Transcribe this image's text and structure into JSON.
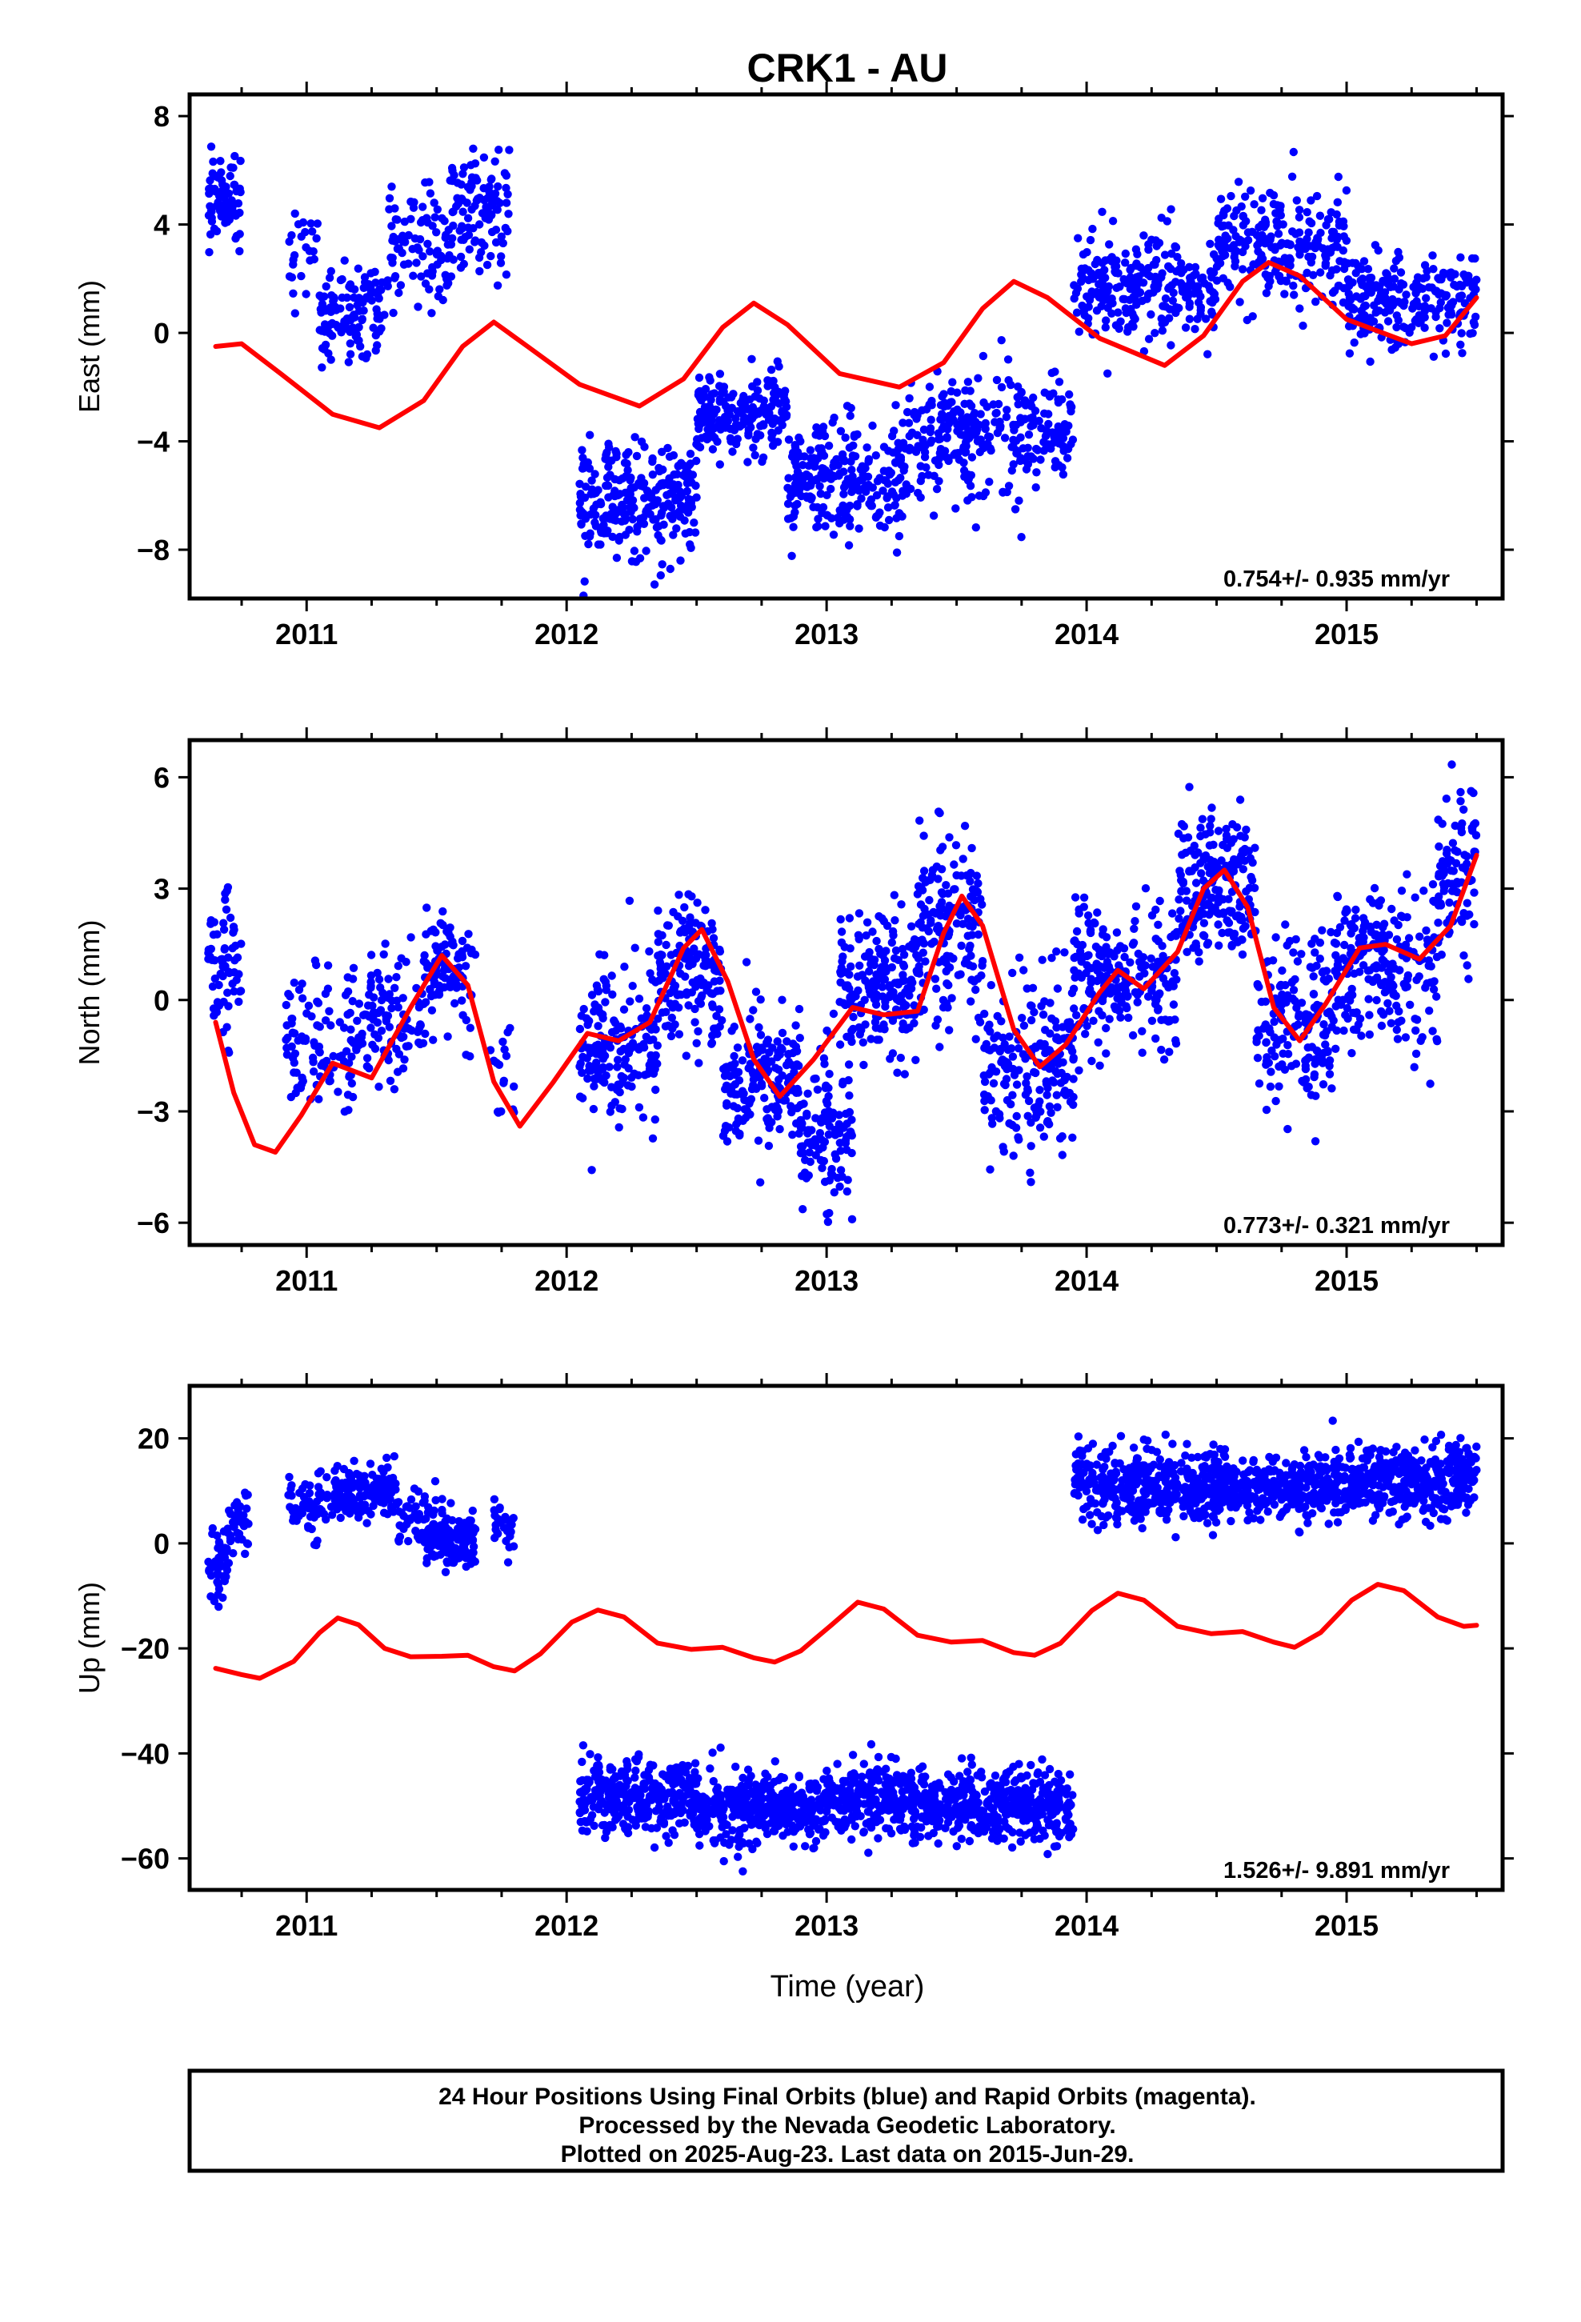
{
  "chart_data": {
    "title": "CRK1 - AU",
    "type": "scatter",
    "x_range": [
      2010.55,
      2015.6
    ],
    "xticks": [
      2011,
      2012,
      2013,
      2014,
      2015
    ],
    "xtick_labels": [
      "2011",
      "2012",
      "2013",
      "2014",
      "2015"
    ],
    "xlabel": "Time (year)",
    "series_colors": {
      "final_orbits": "#0000ff",
      "rapid_orbits": "#ff00ff",
      "model": "#ff0000"
    },
    "panels": [
      {
        "id": "east",
        "ylabel": "East (mm)",
        "ylim": [
          -9.8,
          8.8
        ],
        "yticks": [
          -8,
          -4,
          0,
          4,
          8
        ],
        "ytick_labels": [
          "−8",
          "−4",
          "0",
          "4",
          "8"
        ],
        "rate_text": "0.754+/- 0.935 mm/yr",
        "clusters": [
          [
            2010.62,
            2010.75,
            5.0,
            1.0,
            70
          ],
          [
            2010.93,
            2011.05,
            3.0,
            1.2,
            25
          ],
          [
            2011.05,
            2011.3,
            0.5,
            1.3,
            120
          ],
          [
            2011.3,
            2011.55,
            3.0,
            1.5,
            90
          ],
          [
            2011.55,
            2011.78,
            4.5,
            1.4,
            110
          ],
          [
            2012.05,
            2012.5,
            -6.2,
            1.4,
            260
          ],
          [
            2012.5,
            2012.85,
            -3.0,
            1.0,
            190
          ],
          [
            2012.85,
            2013.3,
            -5.5,
            1.5,
            250
          ],
          [
            2013.3,
            2013.95,
            -3.8,
            1.5,
            300
          ],
          [
            2013.95,
            2014.5,
            1.8,
            1.3,
            260
          ],
          [
            2014.5,
            2015.0,
            3.2,
            1.3,
            240
          ],
          [
            2015.0,
            2015.5,
            1.2,
            1.2,
            230
          ]
        ],
        "model": [
          [
            2010.65,
            -0.5
          ],
          [
            2010.75,
            -0.4
          ],
          [
            2010.9,
            -1.5
          ],
          [
            2011.1,
            -3.0
          ],
          [
            2011.28,
            -3.5
          ],
          [
            2011.45,
            -2.5
          ],
          [
            2011.6,
            -0.5
          ],
          [
            2011.72,
            0.4
          ],
          [
            2011.85,
            -0.5
          ],
          [
            2012.05,
            -1.9
          ],
          [
            2012.28,
            -2.7
          ],
          [
            2012.45,
            -1.7
          ],
          [
            2012.6,
            0.2
          ],
          [
            2012.72,
            1.1
          ],
          [
            2012.85,
            0.3
          ],
          [
            2013.05,
            -1.5
          ],
          [
            2013.28,
            -2.0
          ],
          [
            2013.45,
            -1.1
          ],
          [
            2013.6,
            0.9
          ],
          [
            2013.72,
            1.9
          ],
          [
            2013.85,
            1.3
          ],
          [
            2014.05,
            -0.2
          ],
          [
            2014.3,
            -1.2
          ],
          [
            2014.45,
            -0.1
          ],
          [
            2014.6,
            1.9
          ],
          [
            2014.7,
            2.6
          ],
          [
            2014.82,
            2.1
          ],
          [
            2015.0,
            0.5
          ],
          [
            2015.25,
            -0.4
          ],
          [
            2015.38,
            -0.1
          ],
          [
            2015.5,
            1.3
          ]
        ]
      },
      {
        "id": "north",
        "ylabel": "North (mm)",
        "ylim": [
          -6.6,
          7.0
        ],
        "yticks": [
          -6,
          -3,
          0,
          3,
          6
        ],
        "ytick_labels": [
          "−6",
          "−3",
          "0",
          "3",
          "6"
        ],
        "rate_text": "0.773+/- 0.321 mm/yr",
        "clusters": [
          [
            2010.62,
            2010.75,
            0.8,
            1.2,
            65
          ],
          [
            2010.92,
            2011.2,
            -1.2,
            1.3,
            110
          ],
          [
            2011.2,
            2011.45,
            -0.5,
            1.3,
            100
          ],
          [
            2011.45,
            2011.65,
            0.8,
            1.0,
            100
          ],
          [
            2011.7,
            2011.8,
            -2.0,
            1.0,
            18
          ],
          [
            2012.05,
            2012.35,
            -1.3,
            1.4,
            170
          ],
          [
            2012.35,
            2012.6,
            0.8,
            1.3,
            160
          ],
          [
            2012.6,
            2012.9,
            -2.2,
            1.3,
            180
          ],
          [
            2012.9,
            2013.1,
            -3.5,
            1.4,
            120
          ],
          [
            2013.05,
            2013.35,
            0.3,
            1.3,
            190
          ],
          [
            2013.35,
            2013.6,
            2.0,
            1.6,
            170
          ],
          [
            2013.6,
            2013.95,
            -1.8,
            1.5,
            200
          ],
          [
            2013.95,
            2014.35,
            0.6,
            1.3,
            220
          ],
          [
            2014.35,
            2014.65,
            3.0,
            1.3,
            200
          ],
          [
            2014.65,
            2014.95,
            -0.5,
            1.5,
            170
          ],
          [
            2014.95,
            2015.35,
            0.8,
            1.4,
            220
          ],
          [
            2015.35,
            2015.5,
            3.2,
            1.5,
            90
          ]
        ],
        "model": [
          [
            2010.65,
            -0.6
          ],
          [
            2010.72,
            -2.5
          ],
          [
            2010.8,
            -3.9
          ],
          [
            2010.88,
            -4.1
          ],
          [
            2010.98,
            -3.1
          ],
          [
            2011.1,
            -1.7
          ],
          [
            2011.25,
            -2.1
          ],
          [
            2011.4,
            -0.2
          ],
          [
            2011.52,
            1.2
          ],
          [
            2011.62,
            0.4
          ],
          [
            2011.72,
            -2.2
          ],
          [
            2011.82,
            -3.4
          ],
          [
            2011.95,
            -2.2
          ],
          [
            2012.08,
            -0.9
          ],
          [
            2012.2,
            -1.1
          ],
          [
            2012.32,
            -0.6
          ],
          [
            2012.45,
            1.4
          ],
          [
            2012.52,
            1.9
          ],
          [
            2012.62,
            0.5
          ],
          [
            2012.72,
            -1.6
          ],
          [
            2012.82,
            -2.6
          ],
          [
            2012.95,
            -1.6
          ],
          [
            2013.1,
            -0.2
          ],
          [
            2013.22,
            -0.4
          ],
          [
            2013.35,
            -0.3
          ],
          [
            2013.45,
            1.8
          ],
          [
            2013.52,
            2.8
          ],
          [
            2013.6,
            2.0
          ],
          [
            2013.72,
            -0.8
          ],
          [
            2013.82,
            -1.8
          ],
          [
            2013.92,
            -1.2
          ],
          [
            2014.05,
            0.2
          ],
          [
            2014.12,
            0.8
          ],
          [
            2014.22,
            0.3
          ],
          [
            2014.35,
            1.3
          ],
          [
            2014.45,
            3.0
          ],
          [
            2014.53,
            3.5
          ],
          [
            2014.62,
            2.5
          ],
          [
            2014.72,
            -0.2
          ],
          [
            2014.82,
            -1.1
          ],
          [
            2014.92,
            -0.1
          ],
          [
            2015.05,
            1.4
          ],
          [
            2015.15,
            1.5
          ],
          [
            2015.28,
            1.1
          ],
          [
            2015.4,
            2.0
          ],
          [
            2015.5,
            3.9
          ]
        ]
      },
      {
        "id": "up",
        "ylabel": "Up (mm)",
        "ylim": [
          -66,
          30
        ],
        "yticks": [
          -60,
          -40,
          -20,
          0,
          20
        ],
        "ytick_labels": [
          "−60",
          "−40",
          "−20",
          "0",
          "20"
        ],
        "rate_text": "1.526+/- 9.891 mm/yr",
        "clusters": [
          [
            2010.62,
            2010.7,
            -4.0,
            4.5,
            45
          ],
          [
            2010.7,
            2010.78,
            4.0,
            4.0,
            40
          ],
          [
            2010.93,
            2011.1,
            7.0,
            4.0,
            60
          ],
          [
            2011.1,
            2011.35,
            10.0,
            3.5,
            140
          ],
          [
            2011.35,
            2011.5,
            4.0,
            4.0,
            50
          ],
          [
            2011.45,
            2011.65,
            1.0,
            4.0,
            120
          ],
          [
            2011.72,
            2011.8,
            4.5,
            4.0,
            30
          ],
          [
            2012.05,
            2012.5,
            -48.5,
            4.5,
            320
          ],
          [
            2012.5,
            2013.0,
            -51.0,
            4.5,
            360
          ],
          [
            2013.0,
            2013.5,
            -49.0,
            4.5,
            360
          ],
          [
            2013.5,
            2013.95,
            -50.0,
            4.5,
            320
          ],
          [
            2013.95,
            2014.5,
            11.0,
            4.5,
            380
          ],
          [
            2014.5,
            2015.0,
            10.5,
            4.0,
            350
          ],
          [
            2015.0,
            2015.5,
            12.0,
            4.5,
            350
          ]
        ],
        "model": [
          [
            2010.65,
            -23.8
          ],
          [
            2010.75,
            -25.0
          ],
          [
            2010.82,
            -25.7
          ],
          [
            2010.95,
            -22.5
          ],
          [
            2011.05,
            -17.0
          ],
          [
            2011.12,
            -14.2
          ],
          [
            2011.2,
            -15.5
          ],
          [
            2011.3,
            -20.0
          ],
          [
            2011.4,
            -21.6
          ],
          [
            2011.52,
            -21.5
          ],
          [
            2011.62,
            -21.3
          ],
          [
            2011.72,
            -23.5
          ],
          [
            2011.8,
            -24.3
          ],
          [
            2011.9,
            -21.0
          ],
          [
            2012.02,
            -15.0
          ],
          [
            2012.12,
            -12.7
          ],
          [
            2012.22,
            -14.0
          ],
          [
            2012.35,
            -19.0
          ],
          [
            2012.48,
            -20.2
          ],
          [
            2012.6,
            -19.8
          ],
          [
            2012.72,
            -21.8
          ],
          [
            2012.8,
            -22.6
          ],
          [
            2012.9,
            -20.5
          ],
          [
            2013.02,
            -15.5
          ],
          [
            2013.12,
            -11.2
          ],
          [
            2013.22,
            -12.5
          ],
          [
            2013.35,
            -17.5
          ],
          [
            2013.48,
            -18.8
          ],
          [
            2013.6,
            -18.5
          ],
          [
            2013.72,
            -20.8
          ],
          [
            2013.8,
            -21.3
          ],
          [
            2013.9,
            -19.0
          ],
          [
            2014.02,
            -12.8
          ],
          [
            2014.12,
            -9.5
          ],
          [
            2014.22,
            -10.8
          ],
          [
            2014.35,
            -15.8
          ],
          [
            2014.48,
            -17.2
          ],
          [
            2014.6,
            -16.8
          ],
          [
            2014.72,
            -18.8
          ],
          [
            2014.8,
            -19.8
          ],
          [
            2014.9,
            -17.0
          ],
          [
            2015.02,
            -10.8
          ],
          [
            2015.12,
            -7.8
          ],
          [
            2015.22,
            -9.0
          ],
          [
            2015.35,
            -14.0
          ],
          [
            2015.45,
            -15.8
          ],
          [
            2015.5,
            -15.6
          ]
        ]
      }
    ]
  },
  "footer": {
    "line1": "24 Hour Positions Using Final Orbits (blue) and Rapid Orbits (magenta).",
    "line2": "Processed by the Nevada Geodetic Laboratory.",
    "line3": "Plotted on 2025-Aug-23. Last data on 2015-Jun-29."
  }
}
